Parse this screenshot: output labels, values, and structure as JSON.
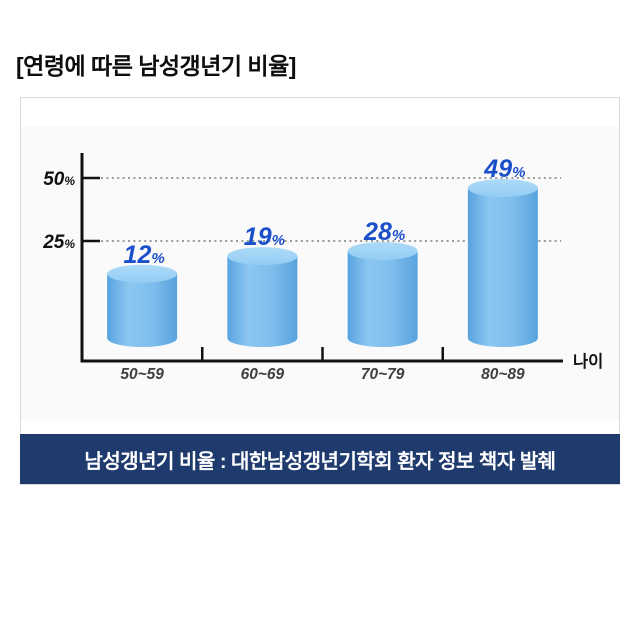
{
  "title": "[연령에 따른 남성갱년기 비율]",
  "source_caption": "남성갱년기 비율 : 대한남성갱년기학회 환자 정보 책자 발췌",
  "colors": {
    "title_text": "#0d0d0d",
    "banner_bg": "#1f3a6d",
    "banner_text": "#ffffff",
    "panel_border": "#d9d9d9",
    "plot_bg": "#fafafa",
    "axis": "#111111",
    "grid_dotted": "#9a9a9a",
    "value_label": "#1b4fca",
    "category_label": "#3f3f3f",
    "ytick_label": "#111111",
    "cylinder_edge": "#57a3de",
    "cylinder_mid": "#8cc7f1",
    "cylinder_top_light": "#aedbf8",
    "cylinder_top_dark": "#93ccf4"
  },
  "chart_data": {
    "type": "bar",
    "bar_style": "cylinder-3d",
    "categories": [
      "50~59",
      "60~69",
      "70~79",
      "80~89"
    ],
    "values": [
      12,
      19,
      28,
      49
    ],
    "value_suffix": "%",
    "title": "[연령에 따른 남성갱년기 비율]",
    "xlabel": "나이",
    "ylabel": "",
    "yticks": [
      25,
      50
    ],
    "ytick_suffix": "%",
    "ylim": [
      0,
      58
    ],
    "grid": "dotted-horizontal-at-yticks",
    "legend": "none",
    "source": "남성갱년기 비율 : 대한남성갱년기학회 환자 정보 책자 발췌"
  }
}
